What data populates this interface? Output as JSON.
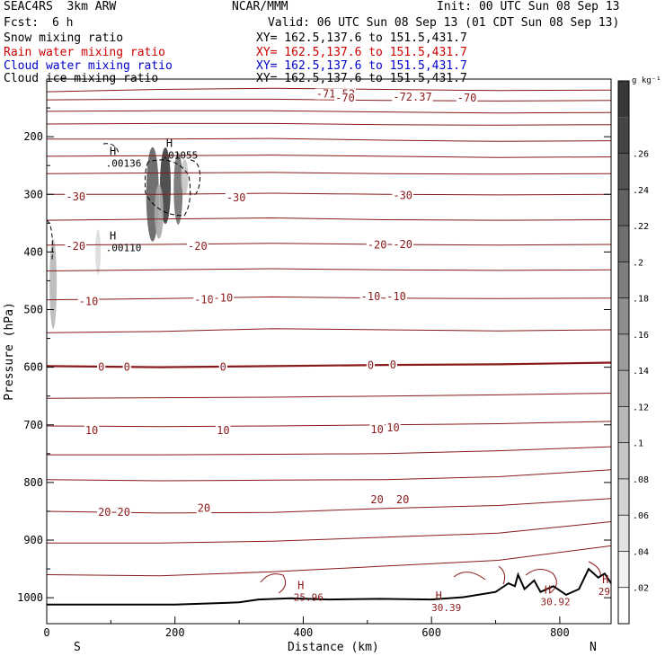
{
  "header": {
    "model": "SEAC4RS  3km ARW",
    "org": "NCAR/MMM",
    "init": "Init: 00 UTC Sun 08 Sep 13",
    "fcst_label": "Fcst:",
    "fcst_value": "6 h",
    "valid": "Valid: 06 UTC Sun 08 Sep 13 (01 CDT Sun 08 Sep 13)"
  },
  "fields": [
    {
      "name": "Snow mixing ratio",
      "xy": "XY= 162.5,137.6 to 151.5,431.7",
      "color": "#000000"
    },
    {
      "name": "Rain water mixing ratio",
      "xy": "XY= 162.5,137.6 to 151.5,431.7",
      "color": "#cc0000"
    },
    {
      "name": "Cloud water mixing ratio",
      "xy": "XY= 162.5,137.6 to 151.5,431.7",
      "color": "#0000cc"
    },
    {
      "name": "Cloud ice mixing ratio",
      "xy": "XY= 162.5,137.6 to 151.5,431.7",
      "color": "#000000"
    }
  ],
  "chart_data": {
    "type": "heatmap",
    "xlabel": "Distance (km)",
    "ylabel": "Pressure (hPa)",
    "xlim": [
      0,
      880
    ],
    "ylim": [
      1045,
      100
    ],
    "xticks": [
      0,
      200,
      400,
      600,
      800
    ],
    "yticks": [
      200,
      300,
      400,
      500,
      600,
      700,
      800,
      900,
      1000
    ],
    "left_end_label": "S",
    "right_end_label": "N",
    "colorbar": {
      "unit": "g kg⁻¹",
      "ticks": [
        0.02,
        0.04,
        0.06,
        0.08,
        0.1,
        0.12,
        0.14,
        0.16,
        0.18,
        0.2,
        0.22,
        0.24,
        0.26
      ],
      "tick_labels": [
        ".02",
        ".04",
        ".06",
        ".08",
        ".1",
        ".12",
        ".14",
        ".16",
        ".18",
        ".2",
        ".22",
        ".24",
        ".26"
      ],
      "range": [
        0,
        0.3
      ]
    },
    "temperature_contours": {
      "color": "#8b1a1a",
      "levels": [
        {
          "p": [
            122,
            118,
            116,
            118,
            120,
            119
          ],
          "label": "-70"
        },
        {
          "p": [
            136,
            135,
            135,
            137,
            138,
            137
          ],
          "label": ""
        },
        {
          "p": [
            156,
            155,
            155,
            157,
            159,
            158
          ],
          "label": ""
        },
        {
          "p": [
            178,
            177,
            177,
            179,
            180,
            179
          ],
          "label": ""
        },
        {
          "p": [
            204,
            204,
            203,
            206,
            208,
            207
          ],
          "label": ""
        },
        {
          "p": [
            234,
            233,
            232,
            234,
            236,
            235
          ],
          "label": ""
        },
        {
          "p": [
            264,
            263,
            262,
            264,
            265,
            264
          ],
          "label": ""
        },
        {
          "p": [
            300,
            300,
            298,
            300,
            301,
            300
          ],
          "label": "-30"
        },
        {
          "p": [
            345,
            343,
            341,
            344,
            345,
            344
          ],
          "label": ""
        },
        {
          "p": [
            388,
            387,
            385,
            387,
            388,
            387
          ],
          "label": "-20"
        },
        {
          "p": [
            433,
            431,
            429,
            431,
            432,
            431
          ],
          "label": ""
        },
        {
          "p": [
            483,
            481,
            478,
            480,
            481,
            480
          ],
          "label": "-10"
        },
        {
          "p": [
            540,
            538,
            533,
            535,
            537,
            535
          ],
          "label": ""
        },
        {
          "p": [
            598,
            600,
            598,
            596,
            595,
            592
          ],
          "label": "0"
        },
        {
          "p": [
            654,
            653,
            652,
            650,
            648,
            645
          ],
          "label": ""
        },
        {
          "p": [
            702,
            703,
            702,
            700,
            698,
            694
          ],
          "label": "10"
        },
        {
          "p": [
            752,
            752,
            751,
            750,
            745,
            738
          ],
          "label": ""
        },
        {
          "p": [
            795,
            797,
            796,
            795,
            790,
            778
          ],
          "label": ""
        },
        {
          "p": [
            850,
            853,
            852,
            845,
            840,
            828
          ],
          "label": "20"
        },
        {
          "p": [
            905,
            905,
            902,
            895,
            888,
            868
          ],
          "label": ""
        },
        {
          "p": [
            960,
            962,
            955,
            945,
            935,
            910
          ],
          "label": ""
        }
      ],
      "labels": [
        {
          "x": 420,
          "p": 126,
          "text": "-71.52"
        },
        {
          "x": 450,
          "p": 133,
          "text": "-70"
        },
        {
          "x": 540,
          "p": 131,
          "text": "-72.37"
        },
        {
          "x": 640,
          "p": 133,
          "text": "-70"
        },
        {
          "x": 30,
          "p": 304,
          "text": "-30"
        },
        {
          "x": 280,
          "p": 306,
          "text": "-30"
        },
        {
          "x": 540,
          "p": 302,
          "text": "-30"
        },
        {
          "x": 30,
          "p": 390,
          "text": "-20"
        },
        {
          "x": 220,
          "p": 390,
          "text": "-20"
        },
        {
          "x": 500,
          "p": 388,
          "text": "-20"
        },
        {
          "x": 540,
          "p": 387,
          "text": "-20"
        },
        {
          "x": 50,
          "p": 486,
          "text": "-10"
        },
        {
          "x": 230,
          "p": 483,
          "text": "-10"
        },
        {
          "x": 260,
          "p": 480,
          "text": "-10"
        },
        {
          "x": 490,
          "p": 477,
          "text": "-10"
        },
        {
          "x": 530,
          "p": 477,
          "text": "-10"
        },
        {
          "x": 80,
          "p": 600,
          "text": "0"
        },
        {
          "x": 120,
          "p": 600,
          "text": "0"
        },
        {
          "x": 270,
          "p": 600,
          "text": "0"
        },
        {
          "x": 500,
          "p": 597,
          "text": "0"
        },
        {
          "x": 535,
          "p": 596,
          "text": "0"
        },
        {
          "x": 60,
          "p": 710,
          "text": "10"
        },
        {
          "x": 265,
          "p": 710,
          "text": "10"
        },
        {
          "x": 505,
          "p": 708,
          "text": "10"
        },
        {
          "x": 530,
          "p": 705,
          "text": "10"
        },
        {
          "x": 80,
          "p": 852,
          "text": "20"
        },
        {
          "x": 110,
          "p": 852,
          "text": "20"
        },
        {
          "x": 235,
          "p": 845,
          "text": "20"
        },
        {
          "x": 505,
          "p": 830,
          "text": "20"
        },
        {
          "x": 545,
          "p": 830,
          "text": "20"
        }
      ]
    },
    "extrema": [
      {
        "x": 92,
        "p": 232,
        "label": "H",
        "value": ".00136",
        "color": "#000000"
      },
      {
        "x": 180,
        "p": 218,
        "label": "H",
        "value": ".01055",
        "color": "#000000"
      },
      {
        "x": 92,
        "p": 378,
        "label": "H",
        "value": ".00110",
        "color": "#000000"
      },
      {
        "x": 385,
        "p": 985,
        "label": "H",
        "value": "25.96",
        "color": "#8b1a1a"
      },
      {
        "x": 600,
        "p": 1003,
        "label": "H",
        "value": "30.39",
        "color": "#8b1a1a"
      },
      {
        "x": 770,
        "p": 993,
        "label": "H",
        "value": "30.92",
        "color": "#8b1a1a"
      },
      {
        "x": 860,
        "p": 975,
        "label": "H",
        "value": "29",
        "color": "#8b1a1a"
      }
    ],
    "shaded_cells": [
      {
        "x": 165,
        "p": 300,
        "w": 14,
        "h": 105,
        "v": 0.22
      },
      {
        "x": 185,
        "p": 285,
        "w": 12,
        "h": 85,
        "v": 0.27
      },
      {
        "x": 205,
        "p": 290,
        "w": 10,
        "h": 80,
        "v": 0.2
      },
      {
        "x": 175,
        "p": 330,
        "w": 10,
        "h": 60,
        "v": 0.12
      },
      {
        "x": 215,
        "p": 270,
        "w": 8,
        "h": 40,
        "v": 0.08
      },
      {
        "x": 10,
        "p": 455,
        "w": 8,
        "h": 100,
        "v": 0.1
      },
      {
        "x": 80,
        "p": 400,
        "w": 6,
        "h": 50,
        "v": 0.05
      }
    ],
    "terrain_pressure": [
      {
        "x": 0,
        "p": 1012
      },
      {
        "x": 200,
        "p": 1012
      },
      {
        "x": 300,
        "p": 1008
      },
      {
        "x": 330,
        "p": 1003
      },
      {
        "x": 380,
        "p": 1001
      },
      {
        "x": 440,
        "p": 1003
      },
      {
        "x": 520,
        "p": 1002
      },
      {
        "x": 600,
        "p": 1003
      },
      {
        "x": 650,
        "p": 999
      },
      {
        "x": 700,
        "p": 990
      },
      {
        "x": 720,
        "p": 975
      },
      {
        "x": 730,
        "p": 980
      },
      {
        "x": 735,
        "p": 960
      },
      {
        "x": 745,
        "p": 985
      },
      {
        "x": 760,
        "p": 970
      },
      {
        "x": 770,
        "p": 990
      },
      {
        "x": 790,
        "p": 980
      },
      {
        "x": 810,
        "p": 995
      },
      {
        "x": 830,
        "p": 985
      },
      {
        "x": 845,
        "p": 950
      },
      {
        "x": 860,
        "p": 965
      },
      {
        "x": 870,
        "p": 958
      },
      {
        "x": 880,
        "p": 975
      }
    ]
  }
}
